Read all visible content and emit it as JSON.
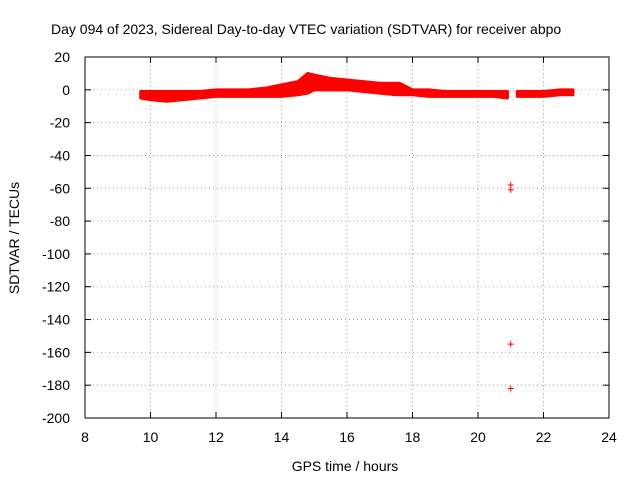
{
  "chart_data": {
    "type": "scatter",
    "title": "Day 094 of 2023, Sidereal Day-to-day VTEC variation (SDTVAR) for receiver abpo",
    "xlabel": "GPS time / hours",
    "ylabel": "SDTVAR / TECUs",
    "xlim": [
      8,
      24
    ],
    "ylim": [
      -200,
      20
    ],
    "xticks": [
      8,
      10,
      12,
      14,
      16,
      18,
      20,
      22,
      24
    ],
    "yticks": [
      20,
      0,
      -20,
      -40,
      -60,
      -80,
      -100,
      -120,
      -140,
      -160,
      -180,
      -200
    ],
    "grid": true,
    "marker": "+",
    "series": [
      {
        "name": "SDTVAR",
        "color": "#ff0000",
        "band": {
          "x": [
            9.7,
            10.0,
            10.5,
            11.0,
            11.5,
            12.0,
            12.5,
            13.0,
            13.5,
            14.0,
            14.5,
            14.8,
            15.0,
            15.5,
            16.0,
            16.5,
            17.0,
            17.5,
            17.6,
            18.0,
            18.5,
            19.0,
            19.5,
            20.0,
            20.5,
            20.9
          ],
          "upper": [
            -1,
            -1,
            -1,
            -1,
            -1,
            0,
            0,
            0,
            1,
            3,
            5,
            10,
            9,
            7,
            6,
            5,
            4,
            4,
            4,
            0,
            0,
            -1,
            -1,
            -1,
            -1,
            -1
          ],
          "lower": [
            -5,
            -6,
            -7,
            -6,
            -5,
            -4,
            -4,
            -4,
            -4,
            -4,
            -3,
            -2,
            0,
            0,
            0,
            -1,
            -2,
            -3,
            -3,
            -3,
            -4,
            -4,
            -4,
            -4,
            -4,
            -5
          ]
        },
        "band2": {
          "x": [
            21.2,
            21.5,
            22.0,
            22.5,
            22.9
          ],
          "upper": [
            -1,
            -1,
            -1,
            0,
            0
          ],
          "lower": [
            -4,
            -4,
            -4,
            -3,
            -3
          ]
        },
        "points": [
          {
            "x": 21.0,
            "y": -58
          },
          {
            "x": 21.0,
            "y": -61
          },
          {
            "x": 21.0,
            "y": -155
          },
          {
            "x": 21.0,
            "y": -182
          }
        ]
      }
    ]
  }
}
